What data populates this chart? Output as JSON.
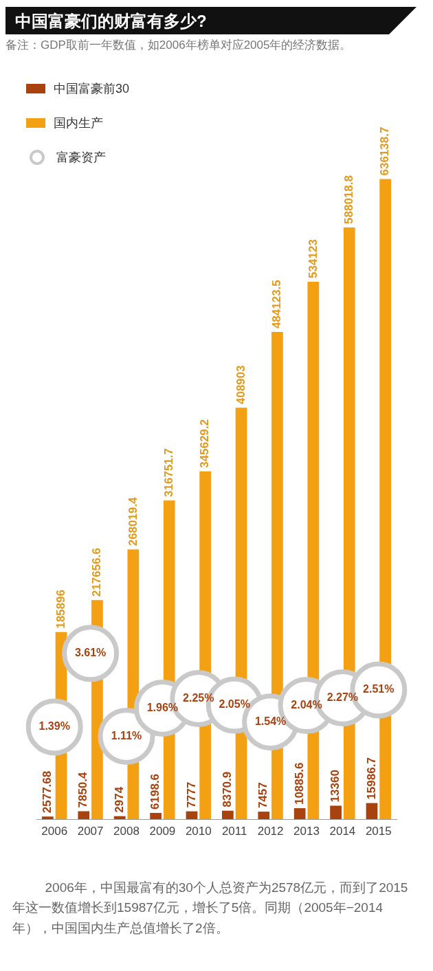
{
  "chart_data": {
    "type": "bar",
    "title": "中国富豪们的财富有多少?",
    "subtitle": "备注：GDP取前一年数值，如2006年榜单对应2005年的经济数据。",
    "categories": [
      "2006",
      "2007",
      "2008",
      "2009",
      "2010",
      "2011",
      "2012",
      "2013",
      "2014",
      "2015"
    ],
    "series": [
      {
        "name": "中国富豪前30",
        "color": "#a8420f",
        "values": [
          2577.68,
          7850.4,
          2974,
          6198.6,
          7777,
          8370.9,
          7457,
          10885.6,
          13360,
          15986.7
        ]
      },
      {
        "name": "国内生产",
        "color": "#f3a012",
        "values": [
          185896,
          217656.6,
          268019.4,
          316751.7,
          345629.2,
          408903,
          484123.5,
          534123,
          588018.8,
          636138.7
        ]
      },
      {
        "name": "富豪资产",
        "type": "scatter",
        "axis": "y2",
        "color": "#c9c9c9",
        "values": [
          1.39,
          3.61,
          1.11,
          1.96,
          2.25,
          2.05,
          1.54,
          2.04,
          2.27,
          2.51
        ],
        "value_labels": [
          "1.39%",
          "3.61%",
          "1.11%",
          "1.96%",
          "2.25%",
          "2.05%",
          "1.54%",
          "2.04%",
          "2.27%",
          "2.51%"
        ]
      }
    ],
    "tick_labels": "x",
    "data_labels": true,
    "legend": "top left",
    "grid": false,
    "annotations": [
      "2006年，中国最富有的30个人总资产为2578亿元，而到了2015年这一数值增长到15987亿元，增长了5倍。同期（2005年−2014年），中国国内生产总值增长了2倍。"
    ]
  }
}
